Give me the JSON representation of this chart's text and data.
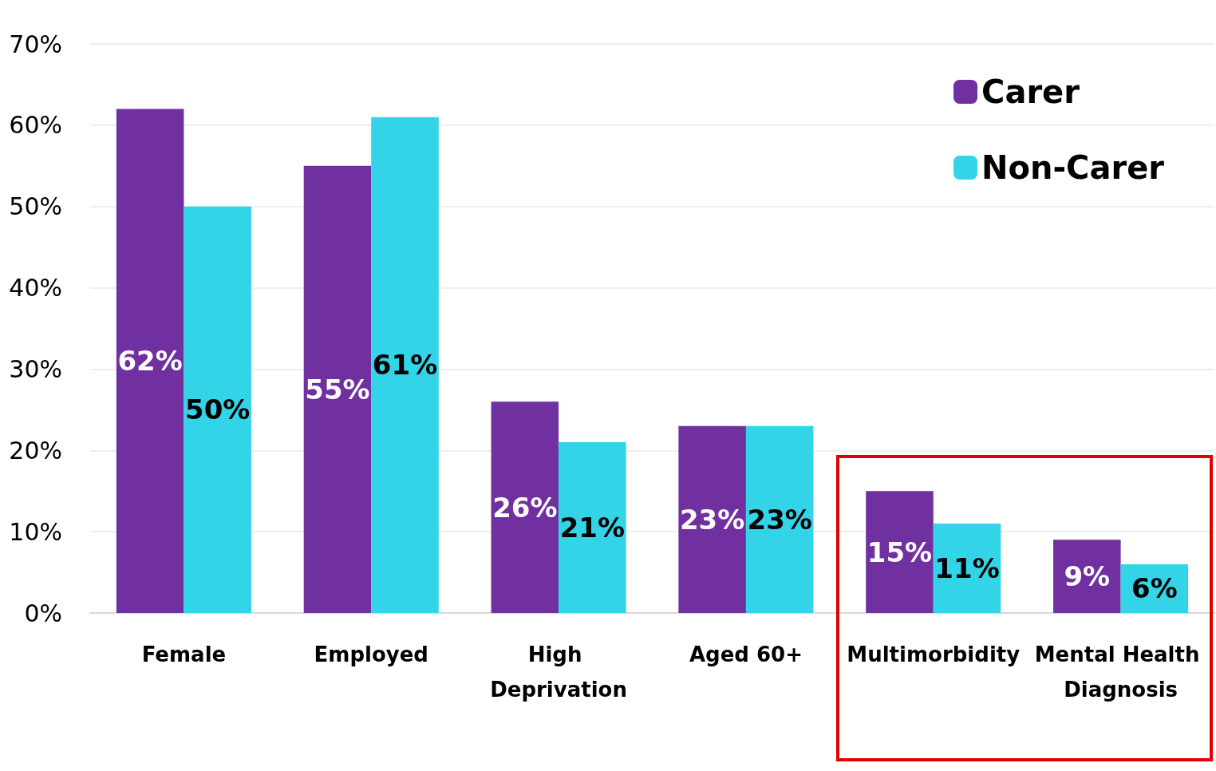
{
  "chart_data": {
    "type": "bar",
    "categories": [
      "Female",
      "Employed",
      "High Deprivation",
      "Aged 60+",
      "Multimorbidity",
      "Mental Health Diagnosis"
    ],
    "series": [
      {
        "name": "Carer",
        "color": "#7030a0",
        "values": [
          62,
          55,
          26,
          23,
          15,
          9
        ],
        "value_labels": [
          "62%",
          "55%",
          "26%",
          "23%",
          "15%",
          "9%"
        ]
      },
      {
        "name": "Non-Carer",
        "color": "#33d4e8",
        "values": [
          50,
          61,
          21,
          23,
          11,
          6
        ],
        "value_labels": [
          "50%",
          "61%",
          "21%",
          "23%",
          "11%",
          "6%"
        ]
      }
    ],
    "ylim": [
      0,
      70
    ],
    "yticks": [
      {
        "value": 0,
        "label": "0%"
      },
      {
        "value": 10,
        "label": "10%"
      },
      {
        "value": 20,
        "label": "20%"
      },
      {
        "value": 30,
        "label": "30%"
      },
      {
        "value": 40,
        "label": "40%"
      },
      {
        "value": 50,
        "label": "50%"
      },
      {
        "value": 60,
        "label": "60%"
      },
      {
        "value": 70,
        "label": "70%"
      }
    ],
    "grid": "y",
    "legend": "top right"
  }
}
